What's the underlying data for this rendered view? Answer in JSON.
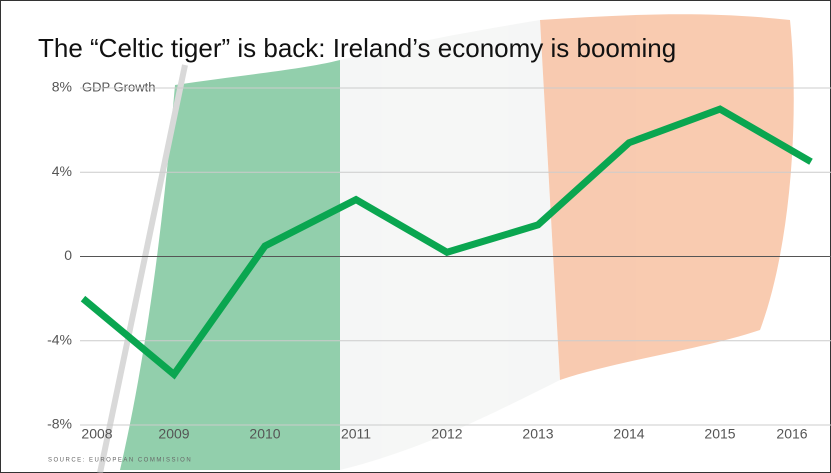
{
  "chart_data": {
    "type": "line",
    "title": "The “Celtic tiger” is back: Ireland’s economy is booming",
    "y_annotation": "GDP Growth",
    "source": "SOURCE: EUROPEAN COMMISSION",
    "x": [
      "2008",
      "2009",
      "2010",
      "2011",
      "2012",
      "2013",
      "2014",
      "2015",
      "2016"
    ],
    "series": [
      {
        "name": "GDP Growth",
        "color": "#0aa650",
        "values": [
          -2.0,
          -5.6,
          0.5,
          2.7,
          0.2,
          1.5,
          5.4,
          7.0,
          4.5
        ]
      }
    ],
    "ylim": [
      -8,
      8
    ],
    "yticks": [
      {
        "value": -8,
        "label": "-8%"
      },
      {
        "value": -4,
        "label": "-4%"
      },
      0,
      {
        "value": 4,
        "label": "4%"
      },
      {
        "value": 8,
        "label": "8%"
      }
    ],
    "grid": true
  }
}
